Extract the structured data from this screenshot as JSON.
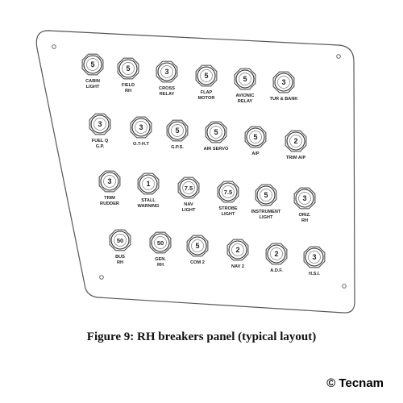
{
  "figure": {
    "caption": "Figure 9: RH breakers panel (typical layout)",
    "copyright": "© Tecnam"
  },
  "breakers": [
    {
      "rating": "5",
      "label": [
        "CABIN",
        "LIGHT"
      ]
    },
    {
      "rating": "5",
      "label": [
        "FIELD",
        "RH"
      ]
    },
    {
      "rating": "3",
      "label": [
        "CROSS",
        "RELAY"
      ]
    },
    {
      "rating": "5",
      "label": [
        "FLAP",
        "MOTOR"
      ]
    },
    {
      "rating": "5",
      "label": [
        "AVIONIC",
        "RELAY"
      ]
    },
    {
      "rating": "3",
      "label": [
        "TUR & BANK"
      ]
    },
    {
      "rating": "3",
      "label": [
        "FUEL Q",
        "G.P."
      ]
    },
    {
      "rating": "3",
      "label": [
        "O.T-H.T"
      ]
    },
    {
      "rating": "5",
      "label": [
        "G.P.S."
      ]
    },
    {
      "rating": "5",
      "label": [
        "AIR SERVO"
      ]
    },
    {
      "rating": "5",
      "label": [
        "A/P"
      ]
    },
    {
      "rating": "2",
      "label": [
        "TRIM A/P"
      ]
    },
    {
      "rating": "3",
      "label": [
        "TRIM",
        "RUDDER"
      ]
    },
    {
      "rating": "1",
      "label": [
        "STALL",
        "WARNING"
      ]
    },
    {
      "rating": "7.5",
      "label": [
        "NAV",
        "LIGHT"
      ]
    },
    {
      "rating": "7.5",
      "label": [
        "STROBE",
        "LIGHT"
      ]
    },
    {
      "rating": "5",
      "label": [
        "INSTRUMENT",
        "LIGHT"
      ]
    },
    {
      "rating": "3",
      "label": [
        "ORIZ.",
        "RH"
      ]
    },
    {
      "rating": "50",
      "label": [
        "BUS",
        "RH"
      ]
    },
    {
      "rating": "50",
      "label": [
        "GEN.",
        "RH"
      ]
    },
    {
      "rating": "5",
      "label": [
        "COM 2"
      ]
    },
    {
      "rating": "2",
      "label": [
        "NAV 2"
      ]
    },
    {
      "rating": "2",
      "label": [
        "A.D.F."
      ]
    },
    {
      "rating": "3",
      "label": [
        "H.S.I."
      ]
    }
  ]
}
